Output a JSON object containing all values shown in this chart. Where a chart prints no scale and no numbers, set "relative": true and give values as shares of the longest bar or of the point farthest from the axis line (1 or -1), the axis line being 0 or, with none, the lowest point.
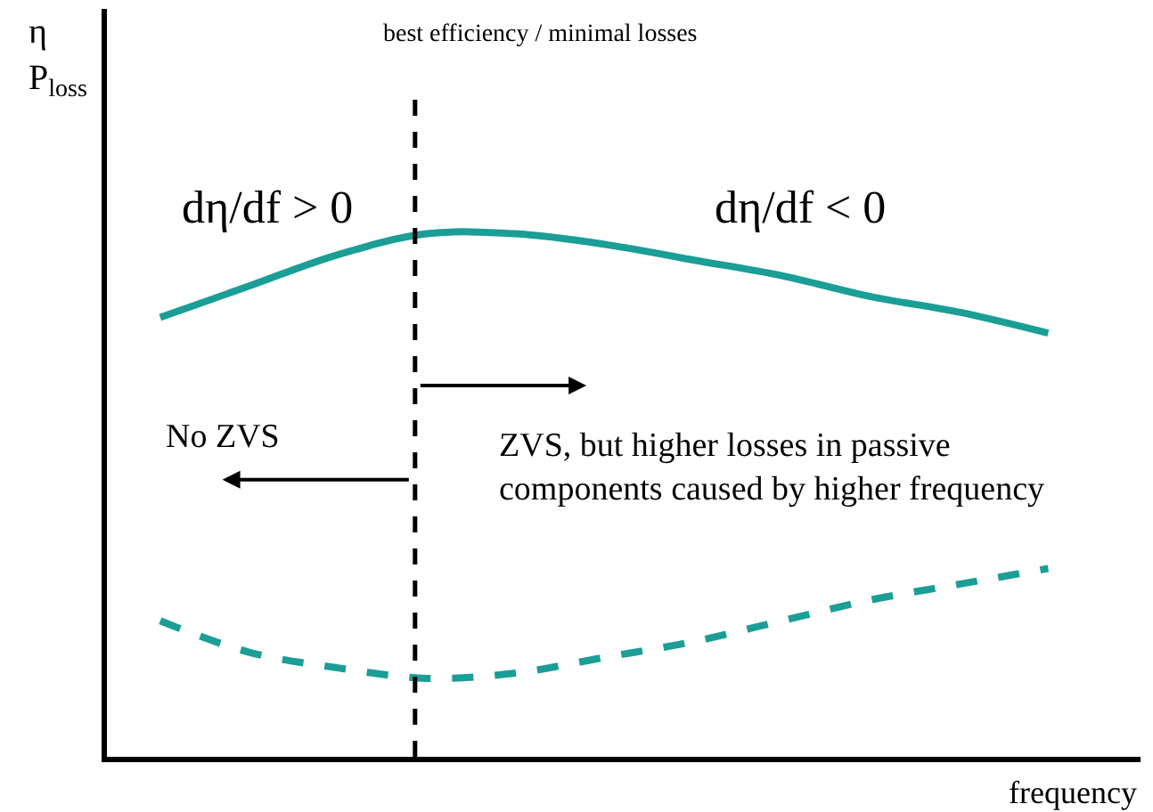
{
  "chart_data": {
    "type": "line",
    "relative": true,
    "xlabel": "frequency",
    "ylabel": "η\nP$_{loss}$",
    "categories": [
      null,
      null,
      null,
      null,
      null,
      null,
      null,
      null,
      null,
      null,
      null
    ],
    "series": [
      {
        "color": "#1a9e96",
        "line_style": "solid",
        "values": [
          0.84,
          0.9,
          0.96,
          1.0,
          1.0,
          0.98,
          0.95,
          0.92,
          0.88,
          0.85,
          0.81
        ]
      },
      {
        "color": "#1a9e96",
        "line_style": "dashed",
        "values": [
          0.26,
          0.2,
          0.17,
          0.15,
          0.16,
          0.19,
          0.22,
          0.26,
          0.3,
          0.33,
          0.36
        ]
      }
    ],
    "annotations": [
      "best efficiency / minimal losses",
      "dη/df > 0",
      "dη/df < 0",
      "No ZVS",
      "ZVS, but higher losses in passive\ncomponents caused by higher frequency"
    ],
    "marker": "none"
  }
}
